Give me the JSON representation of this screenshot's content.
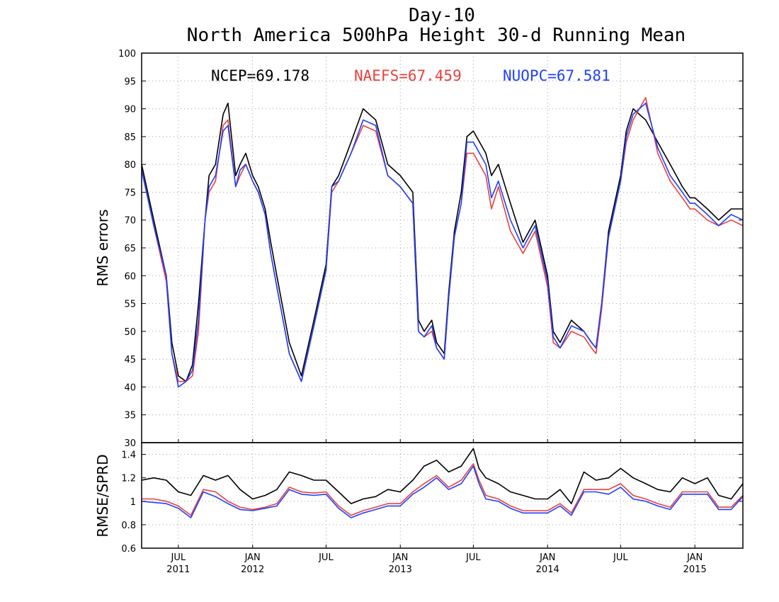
{
  "chart_data": {
    "title": "Day-10",
    "subtitle": "North America 500hPa Height 30-d Running Mean",
    "colors": {
      "NCEP": "#000000",
      "NAEFS": "#e8403e",
      "NUOPC": "#2040ff",
      "grid": "#a0a0a0"
    },
    "legend": [
      {
        "text": "NCEP=69.178",
        "series": "NCEP"
      },
      {
        "text": "NAEFS=67.459",
        "series": "NAEFS"
      },
      {
        "text": "NUOPC=67.581",
        "series": "NUOPC"
      }
    ],
    "x_ticks": [
      {
        "month": "JUL",
        "year": "2011",
        "date": "2011-07-01"
      },
      {
        "month": "JAN",
        "year": "2012",
        "date": "2012-01-01"
      },
      {
        "month": "JUL",
        "year": "",
        "date": "2012-07-01"
      },
      {
        "month": "JAN",
        "year": "2013",
        "date": "2013-01-01"
      },
      {
        "month": "JUL",
        "year": "",
        "date": "2013-07-01"
      },
      {
        "month": "JAN",
        "year": "2014",
        "date": "2014-01-01"
      },
      {
        "month": "JUL",
        "year": "",
        "date": "2014-07-01"
      },
      {
        "month": "JAN",
        "year": "2015",
        "date": "2015-01-01"
      }
    ],
    "panels": [
      {
        "type": "line",
        "ylabel": "RMS errors",
        "ylim": [
          30,
          100
        ],
        "yticks": [
          30,
          35,
          40,
          45,
          50,
          55,
          60,
          65,
          70,
          75,
          80,
          85,
          90,
          95,
          100
        ],
        "grid": true,
        "x": [
          "2011-04-01",
          "2011-05-01",
          "2011-06-01",
          "2011-06-15",
          "2011-07-01",
          "2011-07-20",
          "2011-08-05",
          "2011-08-20",
          "2011-09-05",
          "2011-09-15",
          "2011-10-01",
          "2011-10-20",
          "2011-11-01",
          "2011-11-20",
          "2011-12-01",
          "2011-12-15",
          "2012-01-01",
          "2012-01-15",
          "2012-02-01",
          "2012-02-15",
          "2012-03-01",
          "2012-04-01",
          "2012-05-01",
          "2012-06-01",
          "2012-07-01",
          "2012-07-15",
          "2012-08-01",
          "2012-09-01",
          "2012-10-01",
          "2012-11-01",
          "2012-12-01",
          "2013-01-01",
          "2013-02-01",
          "2013-02-15",
          "2013-03-01",
          "2013-03-20",
          "2013-04-01",
          "2013-04-20",
          "2013-05-01",
          "2013-05-15",
          "2013-06-01",
          "2013-06-15",
          "2013-07-01",
          "2013-08-01",
          "2013-08-15",
          "2013-09-01",
          "2013-10-01",
          "2013-11-01",
          "2013-12-01",
          "2014-01-01",
          "2014-01-15",
          "2014-02-01",
          "2014-03-01",
          "2014-04-01",
          "2014-04-20",
          "2014-05-01",
          "2014-05-15",
          "2014-06-01",
          "2014-07-01",
          "2014-07-15",
          "2014-08-01",
          "2014-09-01",
          "2014-10-01",
          "2014-11-01",
          "2014-12-01",
          "2014-12-20",
          "2015-01-01",
          "2015-02-01",
          "2015-03-01",
          "2015-04-01",
          "2015-04-30"
        ],
        "series": [
          {
            "name": "NCEP",
            "values": [
              80,
              70,
              60,
              48,
              42,
              41,
              44,
              55,
              70,
              78,
              80,
              89,
              91,
              78,
              80,
              82,
              78,
              76,
              72,
              66,
              60,
              48,
              42,
              52,
              62,
              76,
              78,
              84,
              90,
              88,
              80,
              78,
              75,
              52,
              50,
              52,
              48,
              46,
              57,
              68,
              75,
              85,
              86,
              82,
              78,
              80,
              73,
              66,
              70,
              60,
              50,
              48,
              52,
              50,
              48,
              47,
              55,
              68,
              78,
              86,
              90,
              88,
              84,
              80,
              76,
              74,
              74,
              72,
              70,
              72,
              72
            ]
          },
          {
            "name": "NAEFS",
            "values": [
              79,
              69,
              59,
              46,
              41,
              41,
              42,
              50,
              70,
              75,
              77,
              87,
              88,
              76,
              78,
              80,
              77,
              75,
              71,
              64,
              58,
              46,
              41,
              51,
              61,
              75,
              77,
              82,
              87,
              86,
              78,
              76,
              73,
              50,
              49,
              50,
              47,
              45,
              56,
              67,
              73,
              82,
              82,
              78,
              72,
              76,
              68,
              64,
              68,
              58,
              48,
              47,
              50,
              49,
              47,
              46,
              54,
              67,
              77,
              84,
              88,
              92,
              82,
              77,
              74,
              72,
              72,
              70,
              69,
              70,
              69
            ]
          },
          {
            "name": "NUOPC",
            "values": [
              79,
              69,
              60,
              46,
              40,
              41,
              43,
              52,
              70,
              76,
              78,
              86,
              87,
              76,
              79,
              80,
              77,
              75,
              71,
              64,
              58,
              46,
              41,
              51,
              61,
              76,
              77,
              82,
              88,
              87,
              78,
              76,
              73,
              50,
              49,
              51,
              47,
              45,
              56,
              67,
              73,
              84,
              84,
              80,
              74,
              77,
              70,
              65,
              69,
              59,
              49,
              47,
              51,
              50,
              48,
              47,
              55,
              67,
              77,
              85,
              89,
              91,
              83,
              78,
              75,
              73,
              73,
              71,
              69,
              71,
              70
            ]
          }
        ]
      },
      {
        "type": "line",
        "ylabel": "RMSE/SPRD",
        "ylim": [
          0.6,
          1.5
        ],
        "yticks": [
          0.6,
          0.8,
          1,
          1.2,
          1.4
        ],
        "grid": true,
        "x": [
          "2011-04-01",
          "2011-05-01",
          "2011-06-01",
          "2011-07-01",
          "2011-08-01",
          "2011-09-01",
          "2011-10-01",
          "2011-11-01",
          "2011-12-01",
          "2012-01-01",
          "2012-02-01",
          "2012-03-01",
          "2012-04-01",
          "2012-05-01",
          "2012-06-01",
          "2012-07-01",
          "2012-08-01",
          "2012-09-01",
          "2012-10-01",
          "2012-11-01",
          "2012-12-01",
          "2013-01-01",
          "2013-02-01",
          "2013-03-01",
          "2013-04-01",
          "2013-05-01",
          "2013-06-01",
          "2013-07-01",
          "2013-07-15",
          "2013-08-01",
          "2013-09-01",
          "2013-10-01",
          "2013-11-01",
          "2013-12-01",
          "2014-01-01",
          "2014-02-01",
          "2014-03-01",
          "2014-04-01",
          "2014-05-01",
          "2014-06-01",
          "2014-07-01",
          "2014-08-01",
          "2014-09-01",
          "2014-10-01",
          "2014-11-01",
          "2014-12-01",
          "2015-01-01",
          "2015-02-01",
          "2015-03-01",
          "2015-04-01",
          "2015-04-30"
        ],
        "series": [
          {
            "name": "NCEP",
            "values": [
              1.18,
              1.2,
              1.18,
              1.08,
              1.05,
              1.22,
              1.18,
              1.22,
              1.1,
              1.02,
              1.05,
              1.1,
              1.25,
              1.22,
              1.18,
              1.18,
              1.08,
              0.98,
              1.02,
              1.04,
              1.1,
              1.08,
              1.18,
              1.3,
              1.35,
              1.25,
              1.3,
              1.45,
              1.28,
              1.2,
              1.15,
              1.08,
              1.05,
              1.02,
              1.02,
              1.1,
              0.98,
              1.25,
              1.18,
              1.2,
              1.28,
              1.2,
              1.15,
              1.1,
              1.08,
              1.2,
              1.15,
              1.2,
              1.05,
              1.02,
              1.15
            ]
          },
          {
            "name": "NAEFS",
            "values": [
              1.02,
              1.02,
              1.0,
              0.96,
              0.88,
              1.1,
              1.08,
              1.0,
              0.95,
              0.93,
              0.95,
              0.98,
              1.12,
              1.08,
              1.07,
              1.08,
              0.96,
              0.88,
              0.92,
              0.95,
              0.98,
              0.98,
              1.08,
              1.15,
              1.22,
              1.12,
              1.18,
              1.32,
              1.18,
              1.05,
              1.02,
              0.96,
              0.92,
              0.92,
              0.92,
              0.98,
              0.9,
              1.1,
              1.1,
              1.1,
              1.15,
              1.05,
              1.02,
              0.98,
              0.95,
              1.08,
              1.08,
              1.08,
              0.95,
              0.95,
              1.05
            ]
          },
          {
            "name": "NUOPC",
            "values": [
              1.0,
              0.99,
              0.98,
              0.94,
              0.86,
              1.08,
              1.04,
              0.98,
              0.93,
              0.92,
              0.94,
              0.96,
              1.1,
              1.06,
              1.05,
              1.06,
              0.94,
              0.86,
              0.9,
              0.93,
              0.96,
              0.96,
              1.06,
              1.12,
              1.2,
              1.1,
              1.15,
              1.3,
              1.15,
              1.02,
              1.0,
              0.94,
              0.9,
              0.9,
              0.9,
              0.96,
              0.88,
              1.08,
              1.08,
              1.06,
              1.12,
              1.02,
              1.0,
              0.96,
              0.93,
              1.06,
              1.06,
              1.06,
              0.93,
              0.93,
              1.04
            ]
          }
        ]
      }
    ],
    "xlim": [
      "2011-04-01",
      "2015-04-30"
    ]
  }
}
